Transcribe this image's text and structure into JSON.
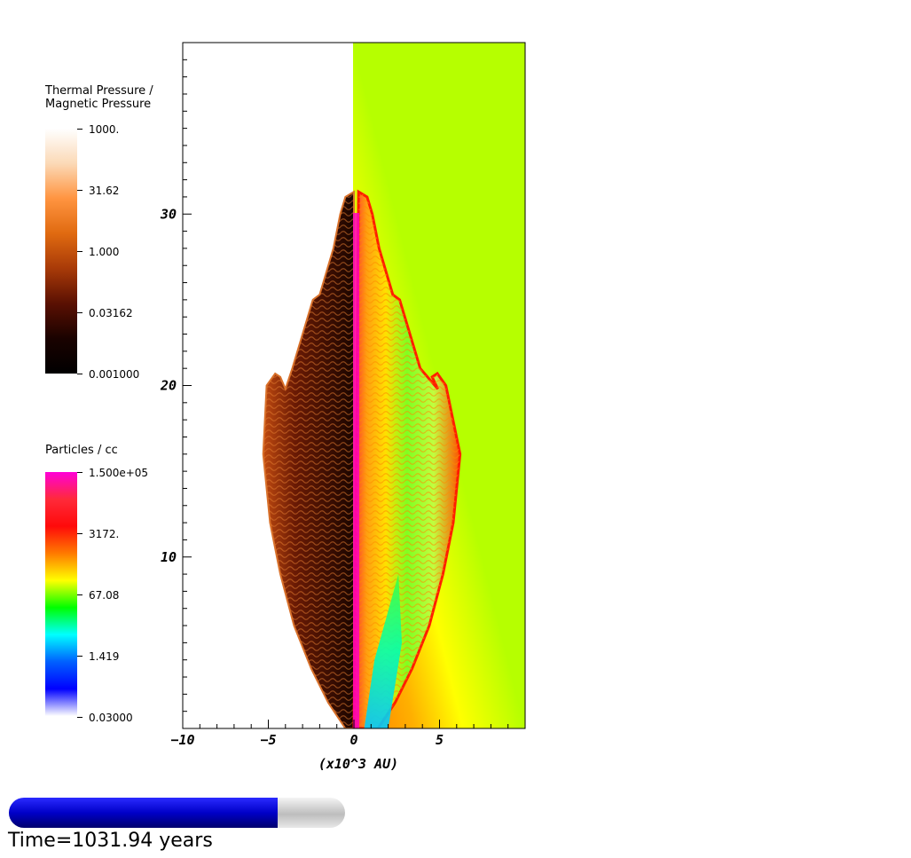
{
  "legends": {
    "pressure": {
      "title_line1": "Thermal Pressure /",
      "title_line2": "Magnetic Pressure",
      "labels": [
        "1000.",
        "31.62",
        "1.000",
        "0.03162",
        "0.001000"
      ],
      "colors": [
        "#ffffff",
        "#fbd9b6",
        "#ff9440",
        "#e06a10",
        "#a83a08",
        "#5a1002",
        "#1a0200",
        "#000000"
      ]
    },
    "density": {
      "title": "Particles / cc",
      "labels": [
        "1.500e+05",
        "3172.",
        "67.08",
        "1.419",
        "0.03000"
      ],
      "colors": [
        "#ff00d8",
        "#ff2a3a",
        "#ff0a0a",
        "#ff7a00",
        "#ffff00",
        "#00ff00",
        "#00ffff",
        "#0060ff",
        "#0000ff",
        "#ffffff"
      ]
    }
  },
  "chart_data": {
    "type": "heatmap",
    "xlabel": "(x10^3 AU)",
    "ylabel": "",
    "xlim": [
      -10,
      10
    ],
    "ylim": [
      0,
      40
    ],
    "x_ticks": [
      -10,
      -5,
      0,
      5
    ],
    "y_ticks": [
      10,
      20,
      30
    ],
    "left_half_field": "Thermal Pressure / Magnetic Pressure",
    "right_half_field": "Particles / cc",
    "bow_shock_outline_x": [
      -0.5,
      -1.5,
      -2.5,
      -3.5,
      -4.3,
      -4.9,
      -5.3,
      -5.1,
      -4.6,
      -4.3,
      -4.0,
      -3.6,
      -2.7,
      -2.4,
      -2.0,
      -1.2,
      -0.8,
      -0.5,
      0
    ],
    "bow_shock_outline_y": [
      0,
      1.5,
      3.5,
      6.0,
      9.0,
      12.0,
      16.0,
      20.0,
      20.7,
      20.5,
      19.8,
      21.0,
      24.0,
      25.0,
      25.3,
      28.0,
      30.0,
      31.0,
      31.3
    ]
  },
  "progress": {
    "fraction": 0.8
  },
  "time_label": "Time=1031.94 years"
}
